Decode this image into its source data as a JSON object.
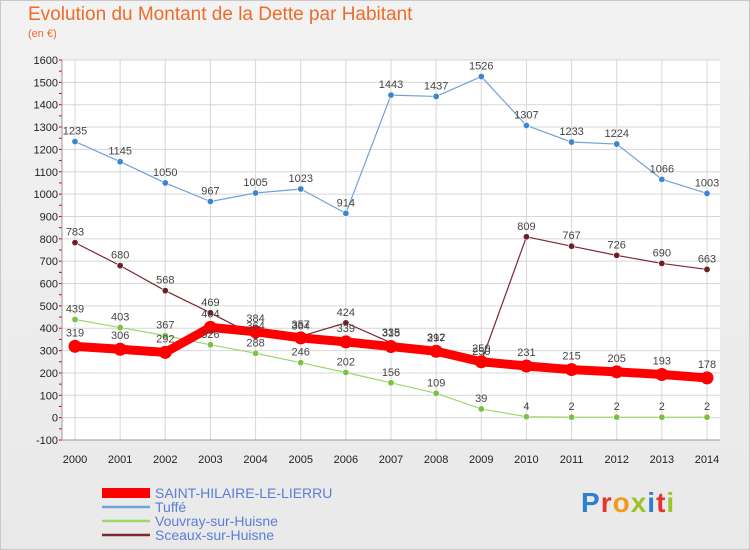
{
  "header": {
    "title": "Evolution du Montant de la Dette par Habitant",
    "unit": "(en €)"
  },
  "logo": {
    "text": "Proxiti",
    "letters": [
      {
        "char": "P",
        "color": "#2f7fd1"
      },
      {
        "char": "r",
        "color": "#e4352b"
      },
      {
        "char": "o",
        "color": "#f39a1d"
      },
      {
        "char": "x",
        "color": "#9bc42c"
      },
      {
        "char": "i",
        "color": "#2f7fd1"
      },
      {
        "char": "t",
        "color": "#e4352b"
      },
      {
        "char": "i",
        "color": "#9bc42c"
      }
    ]
  },
  "chart_data": {
    "type": "line",
    "title": "Evolution du Montant de la Dette par Habitant",
    "subtitle": "(en €)",
    "xlabel": "",
    "ylabel": "",
    "x": [
      "2000",
      "2001",
      "2002",
      "2003",
      "2004",
      "2005",
      "2006",
      "2007",
      "2008",
      "2009",
      "2010",
      "2011",
      "2012",
      "2013",
      "2014"
    ],
    "ylim": [
      -100,
      1600
    ],
    "yticks": [
      -100,
      0,
      100,
      200,
      300,
      400,
      500,
      600,
      700,
      800,
      900,
      1000,
      1100,
      1200,
      1300,
      1400,
      1500,
      1600
    ],
    "grid": true,
    "legend": "bottom-left",
    "series": [
      {
        "name": "SAINT-HILAIRE-LE-LIERRU",
        "color": "#ff0000",
        "marker": "#ff0000",
        "width": 9,
        "values": [
          319,
          306,
          292,
          404,
          384,
          357,
          339,
          318,
          297,
          250,
          231,
          215,
          205,
          193,
          178
        ]
      },
      {
        "name": "Tuffé",
        "color": "#6fa2d9",
        "marker": "#3d85cc",
        "width": 1.2,
        "values": [
          1235,
          1145,
          1050,
          967,
          1005,
          1023,
          914,
          1443,
          1437,
          1526,
          1307,
          1233,
          1224,
          1066,
          1003
        ]
      },
      {
        "name": "Vouvray-sur-Huisne",
        "color": "#9ed66a",
        "marker": "#7cc242",
        "width": 1.2,
        "values": [
          439,
          403,
          367,
          326,
          288,
          246,
          202,
          156,
          109,
          39,
          4,
          2,
          2,
          2,
          2
        ]
      },
      {
        "name": "Sceaux-sur-Huisne",
        "color": "#7a2a30",
        "marker": "#6b1f26",
        "width": 1.2,
        "values": [
          783,
          680,
          568,
          469,
          364,
          364,
          424,
          335,
          312,
          250,
          809,
          767,
          726,
          690,
          663
        ]
      }
    ]
  }
}
